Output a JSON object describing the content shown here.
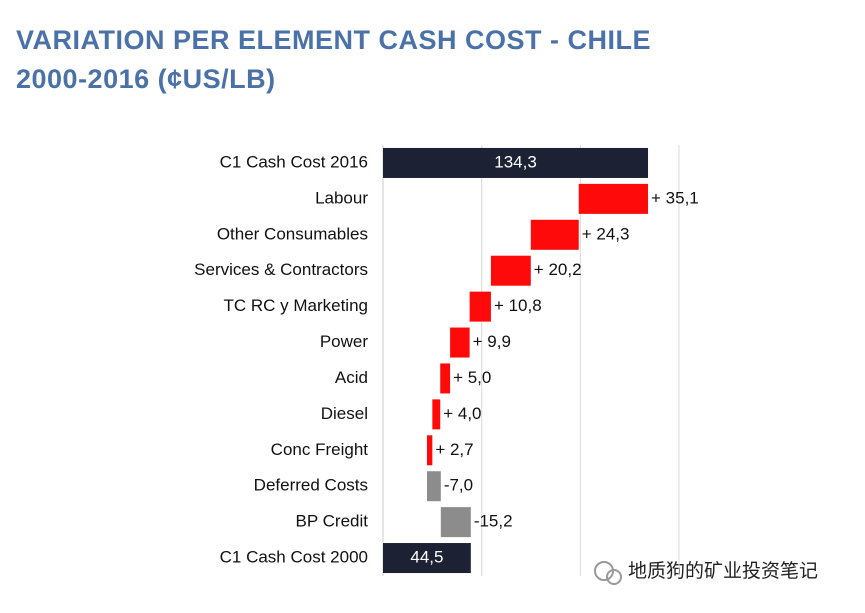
{
  "chart_data": {
    "type": "waterfall",
    "title": [
      "VARIATION PER ELEMENT CASH COST - CHILE",
      "2000-2016 (¢US/LB)"
    ],
    "categories": [
      "C1 Cash Cost 2016",
      "Labour",
      "Other Consumables",
      "Services & Contractors",
      "TC RC y Marketing",
      "Power",
      "Acid",
      "Diesel",
      "Conc Freight",
      "Deferred Costs",
      "BP Credit",
      "C1 Cash Cost 2000"
    ],
    "values": [
      134.3,
      35.1,
      24.3,
      20.2,
      10.8,
      9.9,
      5.0,
      4.0,
      2.7,
      -7.0,
      -15.2,
      44.5
    ],
    "value_labels": [
      "134,3",
      "+ 35,1",
      "+ 24,3",
      "+ 20,2",
      "+ 10,8",
      "+ 9,9",
      "+ 5,0",
      "+ 4,0",
      "+ 2,7",
      "-7,0",
      "-15,2",
      "44,5"
    ],
    "measure": [
      "absolute",
      "relative",
      "relative",
      "relative",
      "relative",
      "relative",
      "relative",
      "relative",
      "relative",
      "relative",
      "relative",
      "absolute"
    ],
    "total_color": "#1c2233",
    "increase_color": "#ff0a0a",
    "decrease_color": "#8c8c8c",
    "xlim": [
      0,
      150
    ],
    "xgrid": [
      50,
      100,
      150
    ]
  },
  "watermark": "地质狗的矿业投资笔记"
}
